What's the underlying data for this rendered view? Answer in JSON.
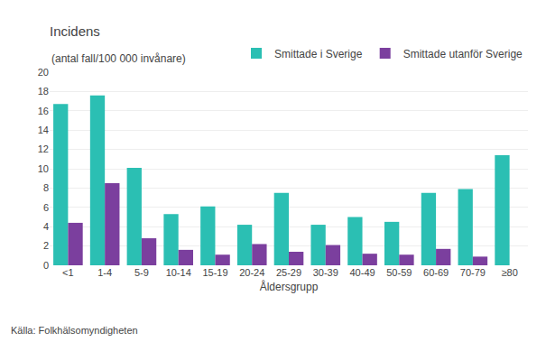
{
  "chart_data": {
    "type": "bar",
    "title": "Incidens",
    "subtitle": "(antal fall/100 000 invånare)",
    "xlabel": "Åldersgrupp",
    "annotations": [
      "Källa: Folkhälsomyndigheten"
    ],
    "categories": [
      "<1",
      "1-4",
      "5-9",
      "10-14",
      "15-19",
      "20-24",
      "25-29",
      "30-39",
      "40-49",
      "50-59",
      "60-69",
      "70-79",
      "≥80"
    ],
    "series": [
      {
        "name": "Smittade i Sverige",
        "color": "#2BBFB3",
        "values": [
          16.7,
          17.6,
          10.1,
          5.3,
          6.1,
          4.2,
          7.5,
          4.2,
          5.0,
          4.5,
          7.5,
          7.9,
          11.4
        ]
      },
      {
        "name": "Smittade utanför Sverige",
        "color": "#7B3F9E",
        "values": [
          4.4,
          8.5,
          2.8,
          1.6,
          1.1,
          2.2,
          1.4,
          2.1,
          1.2,
          1.1,
          1.7,
          0.9,
          0.0
        ]
      }
    ],
    "ylim": [
      0,
      20
    ],
    "yticks": [
      0,
      2,
      4,
      6,
      8,
      10,
      12,
      14,
      16,
      18,
      20
    ],
    "grid": true,
    "legend": "top"
  }
}
